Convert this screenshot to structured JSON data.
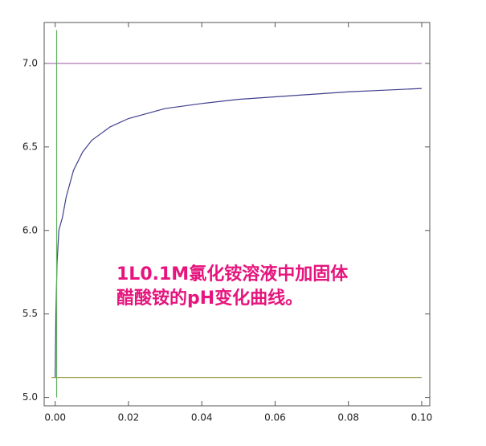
{
  "chart_data": {
    "type": "line",
    "annotations": [
      "1L0.1M氯化铵溶液中加固体",
      "醋酸铵的pH变化曲线。"
    ],
    "xlim": [
      -0.003,
      0.1022
    ],
    "ylim": [
      4.95,
      7.245
    ],
    "xticks": [
      {
        "value": 0,
        "label": "0.00"
      },
      {
        "value": 0.02,
        "label": "0.02"
      },
      {
        "value": 0.04,
        "label": "0.04"
      },
      {
        "value": 0.06,
        "label": "0.06"
      },
      {
        "value": 0.08,
        "label": "0.08"
      },
      {
        "value": 0.1,
        "label": "0.10"
      }
    ],
    "yticks": [
      {
        "value": 5,
        "label": "5.0"
      },
      {
        "value": 5.5,
        "label": "5.5"
      },
      {
        "value": 6,
        "label": "6.0"
      },
      {
        "value": 6.5,
        "label": "6.5"
      },
      {
        "value": 7,
        "label": "7.0"
      }
    ],
    "series": [
      {
        "color": "#3f3f8c",
        "x": [
          0,
          0.0002,
          0.0005,
          0.001,
          0.002,
          0.003,
          0.005,
          0.0075,
          0.01,
          0.015,
          0.02,
          0.03,
          0.04,
          0.05,
          0.06,
          0.07,
          0.08,
          0.09,
          0.1
        ],
        "values": [
          5.12,
          5.5,
          5.8,
          6.0,
          6.08,
          6.2,
          6.36,
          6.47,
          6.54,
          6.62,
          6.67,
          6.73,
          6.76,
          6.785,
          6.8,
          6.815,
          6.83,
          6.84,
          6.85
        ]
      },
      {
        "color": "#a868a8",
        "x": [
          -0.0025,
          0.1
        ],
        "values": [
          7,
          7
        ]
      },
      {
        "color": "#8a8a2a",
        "x": [
          -0.001,
          0.1
        ],
        "values": [
          5.12,
          5.12
        ]
      },
      {
        "color": "#5fb05f",
        "x": [
          0.0004,
          0.0004
        ],
        "values": [
          5,
          7.2
        ]
      }
    ]
  }
}
